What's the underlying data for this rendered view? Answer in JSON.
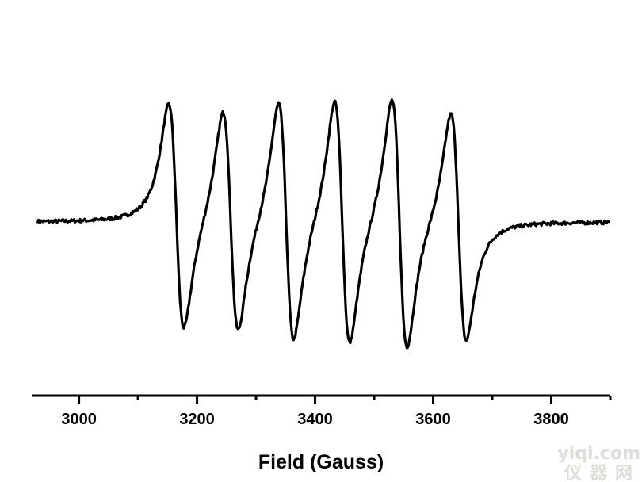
{
  "chart_data": {
    "type": "line",
    "title": "",
    "xlabel": "Field (Gauss)",
    "ylabel": "",
    "xlim": [
      2920,
      3900
    ],
    "ylim": [
      -1.0,
      1.0
    ],
    "xticks": [
      3000,
      3200,
      3400,
      3600,
      3800
    ],
    "xtick_labels": [
      "3000",
      "3200",
      "3400",
      "3600",
      "3800"
    ],
    "grid": false,
    "legend": "none",
    "series": [
      {
        "color": "#000000",
        "lines": [
          {
            "center": 3165,
            "amplitude": 0.9
          },
          {
            "center": 3257,
            "amplitude": 0.89
          },
          {
            "center": 3351,
            "amplitude": 0.96
          },
          {
            "center": 3446,
            "amplitude": 0.98
          },
          {
            "center": 3543,
            "amplitude": 1.0
          },
          {
            "center": 3643,
            "amplitude": 0.91
          }
        ],
        "linewidth_gauss": 13
      }
    ]
  },
  "watermark": {
    "latin": "yiqi.com",
    "cjk": "仪器网"
  }
}
